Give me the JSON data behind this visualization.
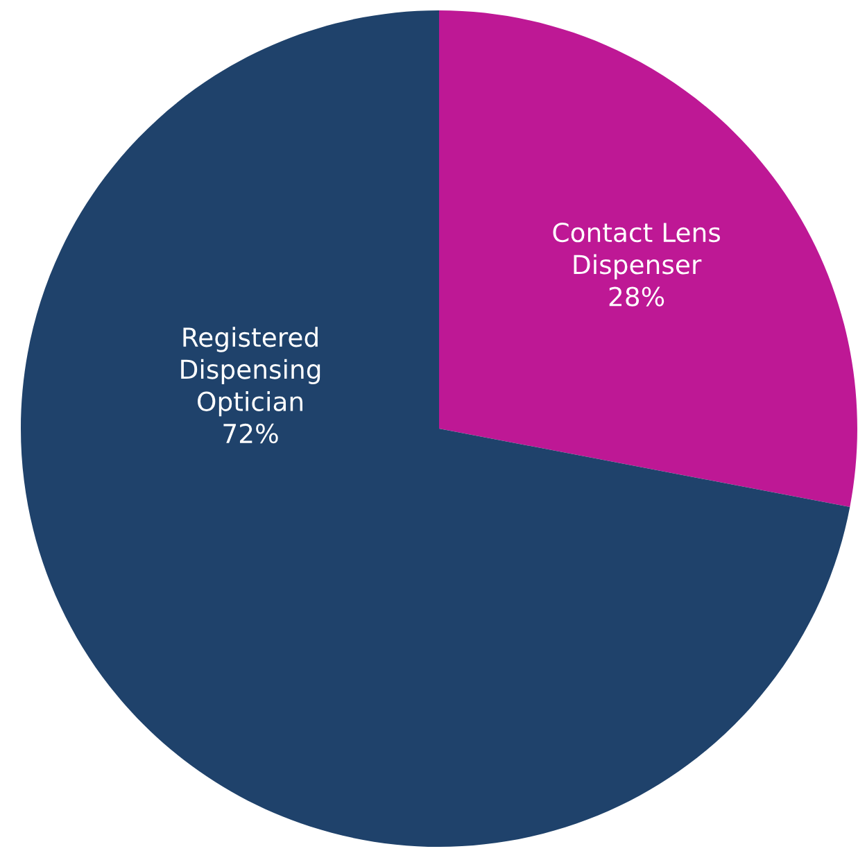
{
  "chart_data": {
    "type": "pie",
    "categories": [
      "Contact Lens Dispenser",
      "Registered Dispensing Optician"
    ],
    "values": [
      28,
      72
    ],
    "colors": [
      "#be1895",
      "#1f426b"
    ],
    "value_labels": [
      "28%",
      "72%"
    ]
  }
}
